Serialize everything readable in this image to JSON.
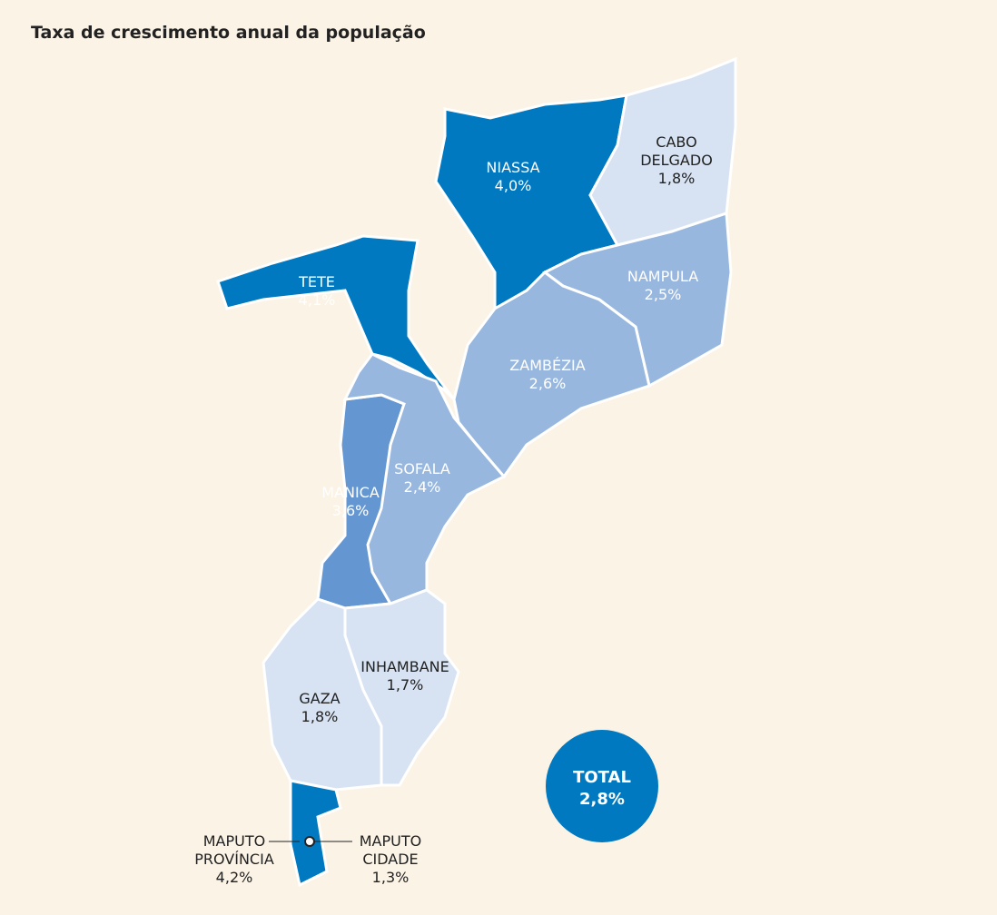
{
  "title": "Taxa de crescimento anual da população",
  "regions": [
    {
      "name": [
        "NIASSA"
      ],
      "value": "4,0%",
      "color": "#0079c1"
    },
    {
      "name": [
        "CABO",
        "DELGADO"
      ],
      "value": "1,8%",
      "color": "#d7e3f3"
    },
    {
      "name": [
        "NAMPULA"
      ],
      "value": "2,5%",
      "color": "#98b7df"
    },
    {
      "name": [
        "ZAMBÉZIA"
      ],
      "value": "2,6%",
      "color": "#98b7df"
    },
    {
      "name": [
        "TETE"
      ],
      "value": "4,1%",
      "color": "#0079c1"
    },
    {
      "name": [
        "MANICA"
      ],
      "value": "3,6%",
      "color": "#6497d2"
    },
    {
      "name": [
        "SOFALA"
      ],
      "value": "2,4%",
      "color": "#98b7df"
    },
    {
      "name": [
        "GAZA"
      ],
      "value": "1,8%",
      "color": "#d7e3f3"
    },
    {
      "name": [
        "INHAMBANE"
      ],
      "value": "1,7%",
      "color": "#d7e3f3"
    },
    {
      "name": [
        "MAPUTO",
        "PROVÍNCIA"
      ],
      "value": "4,2%",
      "color": "#0079c1"
    },
    {
      "name": [
        "MAPUTO",
        "CIDADE"
      ],
      "value": "1,3%",
      "color": "#0079c1"
    }
  ],
  "total": {
    "name": "TOTAL",
    "value": "2,8%",
    "color": "#0079c1"
  }
}
